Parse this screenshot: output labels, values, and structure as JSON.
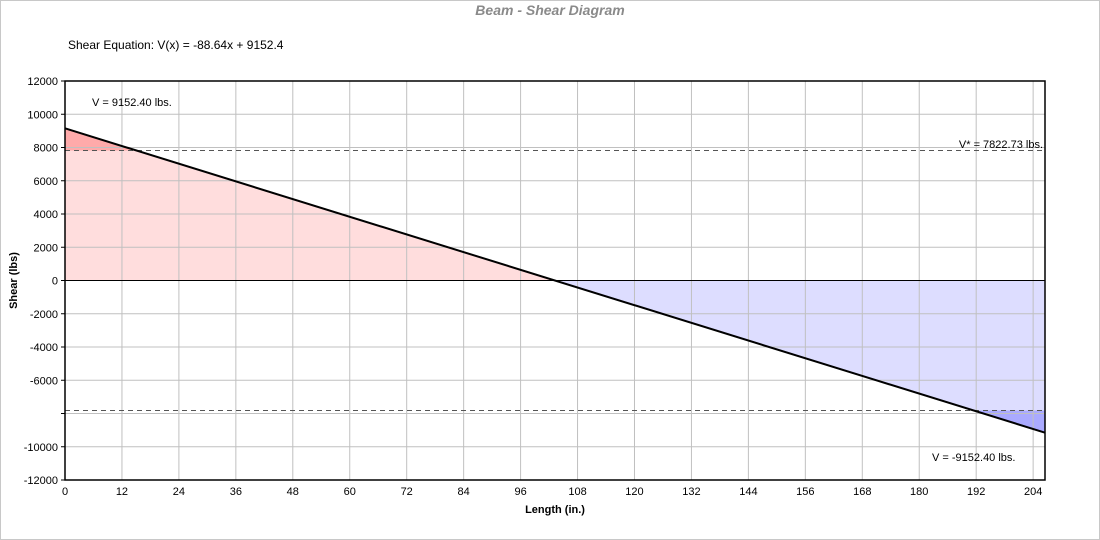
{
  "chart_data": {
    "type": "area",
    "title": "Beam - Shear Diagram",
    "equation_label": "Shear Equation:  V(x) = -88.64x + 9152.4",
    "xlabel": "Length (in.)",
    "ylabel": "Shear (lbs)",
    "xlim": [
      0,
      206.5
    ],
    "ylim": [
      -12000,
      12000
    ],
    "x_ticks": [
      0,
      12,
      24,
      36,
      48,
      60,
      72,
      84,
      96,
      108,
      120,
      132,
      144,
      156,
      168,
      180,
      192,
      204
    ],
    "y_ticks": [
      12000,
      10000,
      8000,
      6000,
      4000,
      2000,
      0,
      -2000,
      -4000,
      -6000,
      -10000,
      -12000
    ],
    "grid": true,
    "series": [
      {
        "x": [
          0,
          206.5
        ],
        "y": [
          9152.4,
          -9152.4
        ],
        "color": "#000000"
      }
    ],
    "allowable_shear": 7822.73,
    "annotations": {
      "v_max": "V = 9152.40 lbs.",
      "v_min": "V = -9152.40 lbs.",
      "v_allow": "V* = 7822.73 lbs."
    },
    "colors": {
      "positive_fill": "#ffdddd",
      "positive_exceed_fill": "#ffaaaa",
      "negative_fill": "#ddddff",
      "negative_exceed_fill": "#aaaaff",
      "grid": "#c0c0c0",
      "title": "#8a8a8a"
    }
  }
}
